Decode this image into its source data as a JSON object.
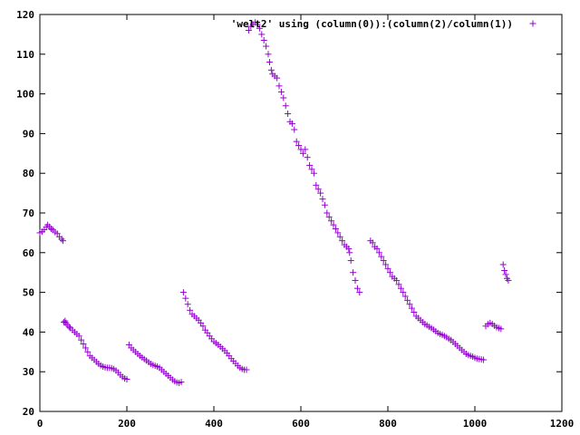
{
  "chart_data": {
    "type": "scatter",
    "title": "",
    "xlabel": "",
    "ylabel": "",
    "xlim": [
      0,
      1200
    ],
    "ylim": [
      20,
      120
    ],
    "x_ticks": [
      0,
      200,
      400,
      600,
      800,
      1000,
      1200
    ],
    "y_ticks": [
      20,
      30,
      40,
      50,
      60,
      70,
      80,
      90,
      100,
      110,
      120
    ],
    "x_tick_labels": [
      "0",
      "200",
      "400",
      "600",
      "800",
      "1000",
      "1200"
    ],
    "y_tick_labels": [
      "20",
      "30",
      "40",
      "50",
      "60",
      "70",
      "80",
      "90",
      "100",
      "110",
      "120"
    ],
    "grid": false,
    "legend_position": "top-right",
    "marker": "plus",
    "series": [
      {
        "name": "'welt2' using (column(0)):(column(2)/column(1))",
        "color": "#9400d3",
        "points": [
          [
            0,
            65
          ],
          [
            5,
            65.3
          ],
          [
            10,
            65.8
          ],
          [
            15,
            66.5
          ],
          [
            18,
            67
          ],
          [
            22,
            66.5
          ],
          [
            26,
            66
          ],
          [
            30,
            65.7
          ],
          [
            35,
            65.2
          ],
          [
            40,
            64.8
          ],
          [
            45,
            64
          ],
          [
            50,
            63.4
          ],
          [
            53,
            63
          ],
          [
            55,
            42.5
          ],
          [
            58,
            42.8
          ],
          [
            60,
            42.3
          ],
          [
            63,
            41.8
          ],
          [
            67,
            41.3
          ],
          [
            70,
            41
          ],
          [
            75,
            40.5
          ],
          [
            80,
            40
          ],
          [
            85,
            39.5
          ],
          [
            90,
            39
          ],
          [
            95,
            38
          ],
          [
            100,
            37
          ],
          [
            105,
            36
          ],
          [
            110,
            35
          ],
          [
            115,
            34
          ],
          [
            120,
            33.5
          ],
          [
            125,
            33
          ],
          [
            130,
            32.5
          ],
          [
            135,
            32
          ],
          [
            140,
            31.6
          ],
          [
            145,
            31.3
          ],
          [
            150,
            31.1
          ],
          [
            155,
            31
          ],
          [
            160,
            31
          ],
          [
            165,
            30.9
          ],
          [
            170,
            30.7
          ],
          [
            175,
            30.3
          ],
          [
            180,
            29.8
          ],
          [
            185,
            29.2
          ],
          [
            190,
            28.7
          ],
          [
            195,
            28.3
          ],
          [
            200,
            28.1
          ],
          [
            205,
            36.8
          ],
          [
            210,
            36
          ],
          [
            215,
            35.5
          ],
          [
            220,
            35
          ],
          [
            225,
            34.5
          ],
          [
            230,
            34
          ],
          [
            235,
            33.6
          ],
          [
            240,
            33.2
          ],
          [
            245,
            32.8
          ],
          [
            250,
            32.4
          ],
          [
            255,
            32
          ],
          [
            260,
            31.7
          ],
          [
            265,
            31.5
          ],
          [
            270,
            31.3
          ],
          [
            275,
            31
          ],
          [
            280,
            30.5
          ],
          [
            285,
            30
          ],
          [
            290,
            29.5
          ],
          [
            295,
            29
          ],
          [
            300,
            28.5
          ],
          [
            305,
            28
          ],
          [
            310,
            27.6
          ],
          [
            315,
            27.3
          ],
          [
            320,
            27.2
          ],
          [
            325,
            27.4
          ],
          [
            330,
            50
          ],
          [
            335,
            48.5
          ],
          [
            340,
            47
          ],
          [
            345,
            45.5
          ],
          [
            350,
            44.5
          ],
          [
            355,
            44
          ],
          [
            360,
            43.5
          ],
          [
            365,
            43
          ],
          [
            370,
            42.3
          ],
          [
            375,
            41.5
          ],
          [
            380,
            40.5
          ],
          [
            385,
            39.8
          ],
          [
            390,
            39
          ],
          [
            395,
            38.3
          ],
          [
            400,
            37.6
          ],
          [
            405,
            37.2
          ],
          [
            410,
            36.8
          ],
          [
            415,
            36.3
          ],
          [
            420,
            35.8
          ],
          [
            425,
            35.3
          ],
          [
            430,
            34.7
          ],
          [
            435,
            34
          ],
          [
            440,
            33.3
          ],
          [
            445,
            32.7
          ],
          [
            450,
            32.1
          ],
          [
            455,
            31.5
          ],
          [
            460,
            31
          ],
          [
            465,
            30.7
          ],
          [
            470,
            30.5
          ],
          [
            475,
            30.5
          ],
          [
            480,
            116
          ],
          [
            485,
            117
          ],
          [
            490,
            117.5
          ],
          [
            495,
            118
          ],
          [
            500,
            117.5
          ],
          [
            505,
            116.5
          ],
          [
            510,
            115
          ],
          [
            515,
            113.5
          ],
          [
            520,
            112
          ],
          [
            525,
            110
          ],
          [
            528,
            108
          ],
          [
            532,
            106
          ],
          [
            535,
            105
          ],
          [
            540,
            104.5
          ],
          [
            545,
            104
          ],
          [
            550,
            102
          ],
          [
            555,
            100.5
          ],
          [
            560,
            99
          ],
          [
            565,
            97
          ],
          [
            570,
            95
          ],
          [
            575,
            93
          ],
          [
            580,
            92.5
          ],
          [
            585,
            91
          ],
          [
            590,
            88
          ],
          [
            595,
            87
          ],
          [
            600,
            86
          ],
          [
            605,
            85
          ],
          [
            610,
            86
          ],
          [
            615,
            84
          ],
          [
            620,
            82
          ],
          [
            625,
            81
          ],
          [
            630,
            80
          ],
          [
            635,
            77
          ],
          [
            640,
            76
          ],
          [
            645,
            75
          ],
          [
            650,
            73.5
          ],
          [
            655,
            72
          ],
          [
            660,
            70
          ],
          [
            665,
            69
          ],
          [
            670,
            68
          ],
          [
            675,
            67
          ],
          [
            680,
            66
          ],
          [
            685,
            65
          ],
          [
            690,
            64
          ],
          [
            695,
            63
          ],
          [
            700,
            62
          ],
          [
            705,
            61.5
          ],
          [
            710,
            61
          ],
          [
            712,
            60
          ],
          [
            715,
            58
          ],
          [
            720,
            55
          ],
          [
            725,
            53
          ],
          [
            730,
            51
          ],
          [
            735,
            50
          ],
          [
            760,
            63
          ],
          [
            765,
            62.5
          ],
          [
            770,
            61.5
          ],
          [
            775,
            61
          ],
          [
            780,
            60
          ],
          [
            785,
            59
          ],
          [
            790,
            58
          ],
          [
            795,
            57
          ],
          [
            800,
            56
          ],
          [
            805,
            55
          ],
          [
            810,
            54
          ],
          [
            815,
            53.5
          ],
          [
            820,
            53
          ],
          [
            825,
            52
          ],
          [
            830,
            51
          ],
          [
            835,
            50
          ],
          [
            840,
            49
          ],
          [
            845,
            48
          ],
          [
            850,
            47
          ],
          [
            855,
            46
          ],
          [
            860,
            45
          ],
          [
            865,
            44
          ],
          [
            870,
            43.5
          ],
          [
            875,
            43
          ],
          [
            880,
            42.5
          ],
          [
            885,
            42
          ],
          [
            890,
            41.7
          ],
          [
            895,
            41.3
          ],
          [
            900,
            41
          ],
          [
            905,
            40.6
          ],
          [
            910,
            40.2
          ],
          [
            915,
            39.8
          ],
          [
            920,
            39.5
          ],
          [
            925,
            39.3
          ],
          [
            930,
            39
          ],
          [
            935,
            38.7
          ],
          [
            940,
            38.3
          ],
          [
            945,
            38
          ],
          [
            950,
            37.5
          ],
          [
            955,
            37
          ],
          [
            960,
            36.5
          ],
          [
            965,
            36
          ],
          [
            970,
            35.5
          ],
          [
            975,
            35
          ],
          [
            980,
            34.5
          ],
          [
            985,
            34.2
          ],
          [
            990,
            34
          ],
          [
            995,
            33.8
          ],
          [
            1000,
            33.5
          ],
          [
            1005,
            33.3
          ],
          [
            1010,
            33.2
          ],
          [
            1015,
            33.1
          ],
          [
            1020,
            33
          ],
          [
            1025,
            41.5
          ],
          [
            1030,
            42
          ],
          [
            1035,
            42.3
          ],
          [
            1040,
            42
          ],
          [
            1045,
            41.6
          ],
          [
            1050,
            41.2
          ],
          [
            1055,
            41
          ],
          [
            1060,
            40.8
          ],
          [
            1065,
            57
          ],
          [
            1068,
            55.5
          ],
          [
            1071,
            54.5
          ],
          [
            1074,
            53.5
          ],
          [
            1077,
            53
          ]
        ]
      }
    ]
  }
}
